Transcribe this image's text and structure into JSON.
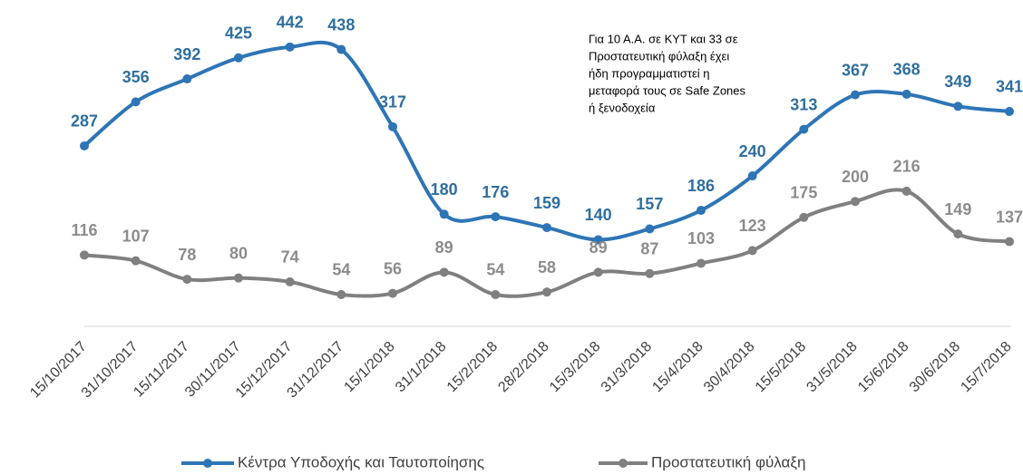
{
  "chart_data": {
    "type": "line",
    "categories": [
      "15/10/2017",
      "31/10/2017",
      "15/11/2017",
      "30/11/2017",
      "15/12/2017",
      "31/12/2017",
      "15/1/2018",
      "31/1/2018",
      "15/2/2018",
      "28/2/2018",
      "15/3/2018",
      "31/3/2018",
      "15/4/2018",
      "30/4/2018",
      "15/5/2018",
      "31/5/2018",
      "15/6/2018",
      "30/6/2018",
      "15/7/2018"
    ],
    "series": [
      {
        "name": "Κέντρα Υποδοχής και Ταυτοποίησης",
        "color": "#2e75b6",
        "label_color": "#2f6f9f",
        "values": [
          287,
          356,
          392,
          425,
          442,
          438,
          317,
          180,
          176,
          159,
          140,
          157,
          186,
          240,
          313,
          367,
          368,
          349,
          341
        ]
      },
      {
        "name": "Προστατευτική φύλαξη",
        "color": "#808080",
        "label_color": "#8c8c8c",
        "values": [
          116,
          107,
          78,
          80,
          74,
          54,
          56,
          89,
          54,
          58,
          89,
          87,
          103,
          123,
          175,
          200,
          216,
          149,
          137
        ]
      }
    ],
    "ylim": [
      0,
      500
    ],
    "annotation": [
      "Για 10 Α.Α. σε ΚΥΤ και 33 σε",
      "Προστατευτική φύλαξη έχει",
      "ήδη προγραμματιστεί η",
      "μεταφορά τους σε Safe Zones",
      "ή ξενοδοχεία"
    ],
    "legend": "bottom"
  }
}
